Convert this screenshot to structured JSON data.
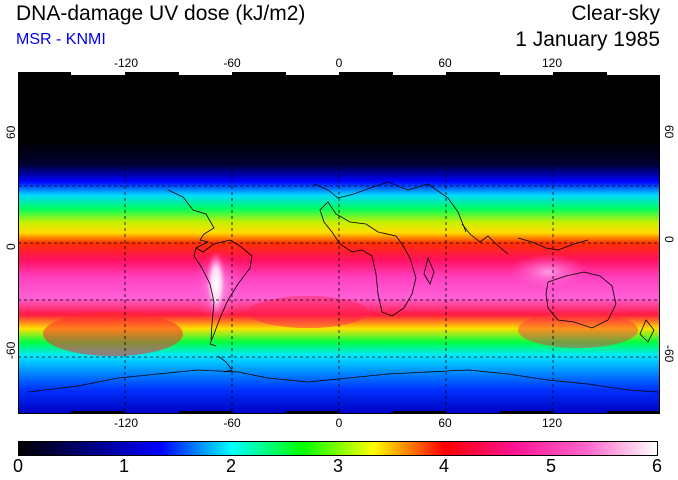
{
  "header": {
    "title": "DNA-damage UV dose (kJ/m2)",
    "subtitle": "MSR - KNMI",
    "subtitle_color": "#0000ee",
    "condition": "Clear-sky",
    "date": "1 January 1985"
  },
  "map": {
    "lon_ticks": [
      "-120",
      "-60",
      "0",
      "60",
      "120"
    ],
    "lon_tick_values": [
      -120,
      -60,
      0,
      60,
      120
    ],
    "lat_ticks": [
      "60",
      "0",
      "-60"
    ],
    "lat_tick_values": [
      60,
      0,
      -60
    ],
    "lon_range": [
      -180,
      180
    ],
    "lat_range": [
      -90,
      90
    ]
  },
  "colorbar": {
    "labels": [
      "0",
      "1",
      "2",
      "3",
      "4",
      "5",
      "6"
    ],
    "min": 0,
    "max": 6,
    "stops": [
      "#000000",
      "#000080",
      "#0000ff",
      "#00ffff",
      "#00ff00",
      "#ffff00",
      "#ff0000",
      "#ff1493",
      "#ff66cc",
      "#ffffff"
    ]
  },
  "colors": {
    "background": "#ffffff",
    "coastline": "#000000",
    "grid": "#000000"
  }
}
